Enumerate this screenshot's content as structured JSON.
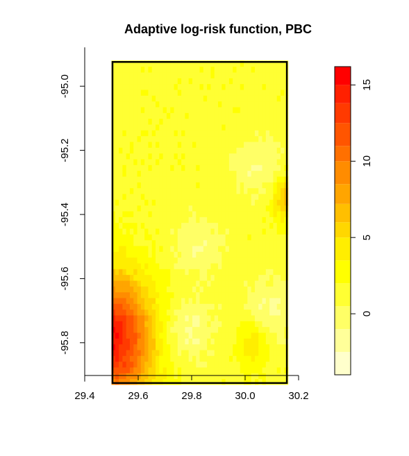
{
  "chart_data": {
    "type": "heatmap",
    "title": "Adaptive log-risk function, PBC",
    "xlabel": "",
    "ylabel": "",
    "xlim": [
      29.4,
      30.2
    ],
    "ylim": [
      -95.9,
      -94.9
    ],
    "x_ticks": [
      "29.4",
      "29.6",
      "29.8",
      "30.0",
      "30.2"
    ],
    "y_ticks": [
      "-95.0",
      "-95.2",
      "-95.4",
      "-95.6",
      "-95.8"
    ],
    "window_x": [
      29.5,
      30.16
    ],
    "window_y": [
      -95.93,
      -94.92
    ],
    "colorbar": {
      "range": [
        -4,
        16
      ],
      "breaks": [
        -4,
        -2.5,
        -1,
        0.5,
        2,
        3.5,
        5,
        6,
        7.2,
        8.5,
        10,
        11,
        12.5,
        13.8,
        15,
        16.2
      ],
      "colors": [
        "#FFFFCC",
        "#FFFF99",
        "#FFFF66",
        "#FFFF33",
        "#FFFF00",
        "#FFEE00",
        "#FFD700",
        "#FFBF00",
        "#FFA500",
        "#FF8C00",
        "#FF7000",
        "#FF5500",
        "#FF3A00",
        "#FF2000",
        "#FF0000"
      ],
      "ticks": [
        "0",
        "5",
        "10",
        "15"
      ]
    },
    "surface": {
      "baseline": 1.5,
      "hotspots": [
        {
          "x": 29.5,
          "y": -95.79,
          "value": 15
        },
        {
          "x": 30.16,
          "y": -95.35,
          "value": 7
        },
        {
          "x": 30.03,
          "y": -95.8,
          "value": 5
        }
      ],
      "cold_regions": [
        {
          "x": 29.78,
          "y": -95.76,
          "value": -2.5
        },
        {
          "x": 29.82,
          "y": -95.5,
          "value": -1.5
        },
        {
          "x": 30.05,
          "y": -95.25,
          "value": -1.5
        },
        {
          "x": 30.1,
          "y": -95.7,
          "value": -2
        }
      ]
    }
  }
}
